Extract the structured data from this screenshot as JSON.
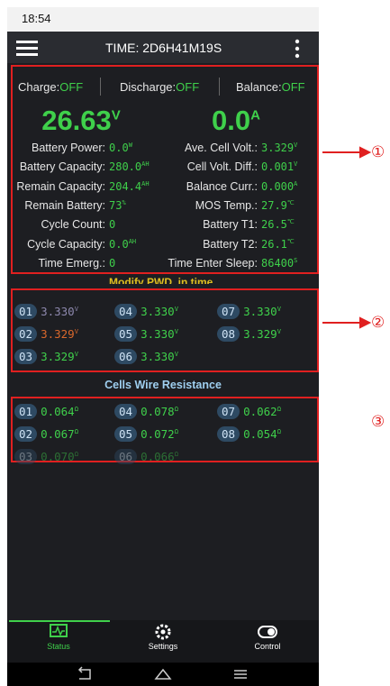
{
  "status_bar": {
    "time": "18:54"
  },
  "header": {
    "title": "TIME: 2D6H41M19S"
  },
  "switches": [
    {
      "label": "Charge:",
      "state": "OFF"
    },
    {
      "label": "Discharge:",
      "state": "OFF"
    },
    {
      "label": "Balance:",
      "state": "OFF"
    }
  ],
  "main": {
    "voltage": "26.63",
    "voltage_unit": "V",
    "current": "0.0",
    "current_unit": "A"
  },
  "left_params": [
    {
      "label": "Battery Power:",
      "value": "0.0",
      "unit": "W"
    },
    {
      "label": "Battery Capacity:",
      "value": "280.0",
      "unit": "AH"
    },
    {
      "label": "Remain Capacity:",
      "value": "204.4",
      "unit": "AH"
    },
    {
      "label": "Remain Battery:",
      "value": "73",
      "unit": "%"
    },
    {
      "label": "Cycle Count:",
      "value": "0"
    },
    {
      "label": "Cycle Capacity:",
      "value": "0.0",
      "unit": "AH"
    },
    {
      "label": "Time Emerg.:",
      "value": "0"
    }
  ],
  "right_params": [
    {
      "label": "Ave. Cell Volt.:",
      "value": "3.329",
      "unit": "V"
    },
    {
      "label": "Cell Volt. Diff.:",
      "value": "0.001",
      "unit": "V"
    },
    {
      "label": "Balance Curr.:",
      "value": "0.000",
      "unit": "A"
    },
    {
      "label": "MOS Temp.:",
      "value": "27.9",
      "unit": "℃"
    },
    {
      "label": "Battery T1:",
      "value": "26.5",
      "unit": "℃"
    },
    {
      "label": "Battery T2:",
      "value": "26.1",
      "unit": "℃"
    },
    {
      "label": "Time Enter Sleep:",
      "value": "86400",
      "unit": "S"
    }
  ],
  "notice": "Modify PWD. in time",
  "cells": [
    {
      "id": "01",
      "value": "3.330",
      "unit": "V",
      "color": "#8d88ad"
    },
    {
      "id": "02",
      "value": "3.329",
      "unit": "V",
      "color": "#d9682c"
    },
    {
      "id": "03",
      "value": "3.329",
      "unit": "V",
      "color": "#3fd04b"
    },
    {
      "id": "04",
      "value": "3.330",
      "unit": "V",
      "color": "#3fd04b"
    },
    {
      "id": "05",
      "value": "3.330",
      "unit": "V",
      "color": "#3fd04b"
    },
    {
      "id": "06",
      "value": "3.330",
      "unit": "V",
      "color": "#3fd04b"
    },
    {
      "id": "07",
      "value": "3.330",
      "unit": "V",
      "color": "#3fd04b"
    },
    {
      "id": "08",
      "value": "3.329",
      "unit": "V",
      "color": "#3fd04b"
    }
  ],
  "resistance_title": "Cells Wire Resistance",
  "resistances": [
    {
      "id": "01",
      "value": "0.064",
      "unit": "Ω"
    },
    {
      "id": "02",
      "value": "0.067",
      "unit": "Ω"
    },
    {
      "id": "03",
      "value": "0.070",
      "unit": "Ω"
    },
    {
      "id": "04",
      "value": "0.078",
      "unit": "Ω"
    },
    {
      "id": "05",
      "value": "0.072",
      "unit": "Ω"
    },
    {
      "id": "06",
      "value": "0.066",
      "unit": "Ω"
    },
    {
      "id": "07",
      "value": "0.062",
      "unit": "Ω"
    },
    {
      "id": "08",
      "value": "0.054",
      "unit": "Ω"
    }
  ],
  "nav": [
    "Status",
    "Settings",
    "Control"
  ],
  "annotations": [
    "①",
    "②",
    "③"
  ]
}
